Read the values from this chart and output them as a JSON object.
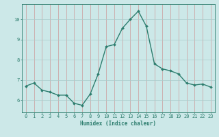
{
  "x": [
    0,
    1,
    2,
    3,
    4,
    5,
    6,
    7,
    8,
    9,
    10,
    11,
    12,
    13,
    14,
    15,
    16,
    17,
    18,
    19,
    20,
    21,
    22,
    23
  ],
  "y": [
    6.7,
    6.85,
    6.5,
    6.4,
    6.25,
    6.25,
    5.85,
    5.75,
    6.3,
    7.3,
    8.65,
    8.75,
    9.55,
    10.0,
    10.4,
    9.65,
    7.8,
    7.55,
    7.45,
    7.3,
    6.85,
    6.75,
    6.8,
    6.65
  ],
  "line_color": "#2d7d6e",
  "marker": "D",
  "marker_size": 2.0,
  "linewidth": 1.0,
  "bg_color": "#cce8e8",
  "grid_color": "#aacccc",
  "grid_linewidth": 0.5,
  "tick_color": "#2d7d6e",
  "label_color": "#2d7d6e",
  "xlabel": "Humidex (Indice chaleur)",
  "xlabel_fontsize": 5.5,
  "tick_fontsize": 5.0,
  "ylim": [
    5.4,
    10.75
  ],
  "yticks": [
    6,
    7,
    8,
    9,
    10
  ],
  "xticks": [
    0,
    1,
    2,
    3,
    4,
    5,
    6,
    7,
    8,
    9,
    10,
    11,
    12,
    13,
    14,
    15,
    16,
    17,
    18,
    19,
    20,
    21,
    22,
    23
  ]
}
